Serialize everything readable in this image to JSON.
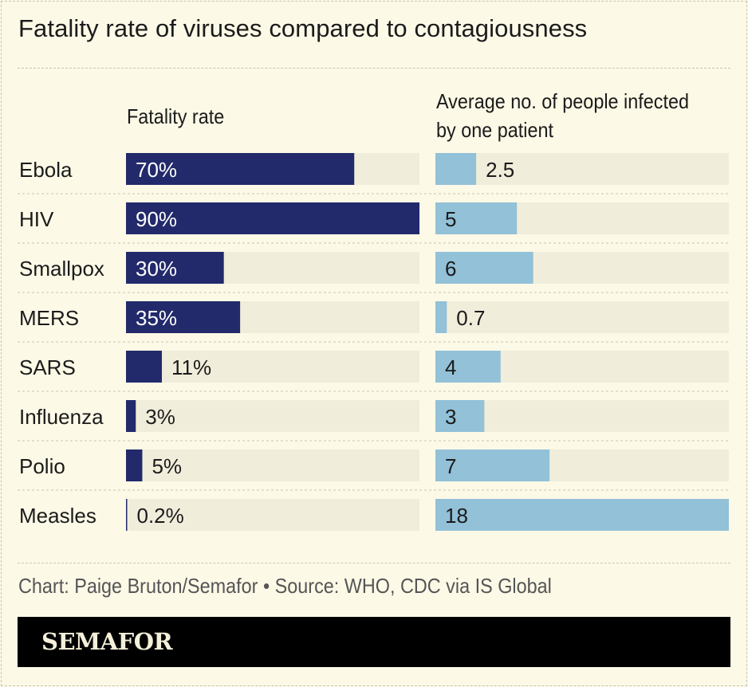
{
  "title": "Fatality rate of viruses compared to contagiousness",
  "footer": {
    "credit": "Chart: Paige Bruton/Semafor • Source: WHO, CDC via IS Global",
    "logo": "SEMAFOR"
  },
  "chart_data": {
    "type": "bar",
    "categories": [
      "Ebola",
      "HIV",
      "Smallpox",
      "MERS",
      "SARS",
      "Influenza",
      "Polio",
      "Measles"
    ],
    "series": [
      {
        "name": "Fatality rate",
        "values": [
          70,
          90,
          30,
          35,
          11,
          3,
          5,
          0.2
        ],
        "labels": [
          "70%",
          "90%",
          "30%",
          "35%",
          "11%",
          "3%",
          "5%",
          "0.2%"
        ],
        "max": 90,
        "color": "#222a6b"
      },
      {
        "name": "Average no. of people infected by one patient",
        "name_lines": [
          "Average no. of people infected",
          "by one patient"
        ],
        "values": [
          2.5,
          5,
          6,
          0.7,
          4,
          3,
          7,
          18
        ],
        "labels": [
          "2.5",
          "5",
          "6",
          "0.7",
          "4",
          "3",
          "7",
          "18"
        ],
        "max": 18,
        "color": "#92c1d8"
      }
    ],
    "track_color": "#f1eddb",
    "grid": false,
    "legend": "none"
  }
}
